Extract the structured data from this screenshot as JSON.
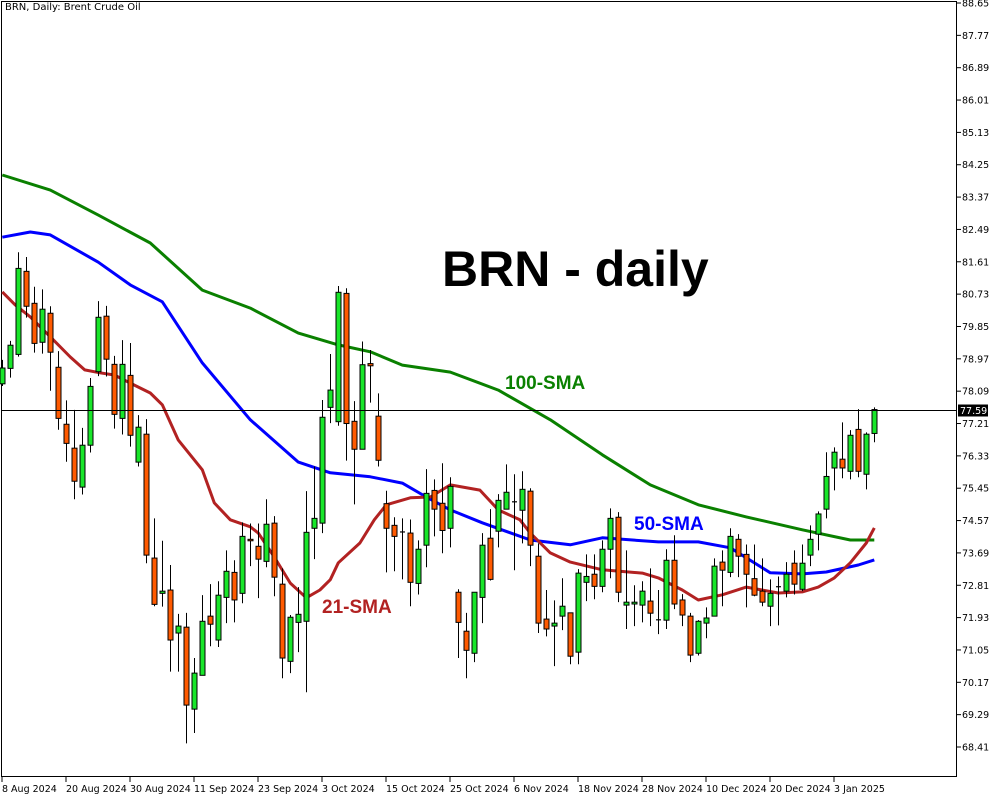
{
  "header": {
    "title": "BRN, Daily:  Brent Crude Oil"
  },
  "annotations": {
    "big_title": "BRN - daily",
    "sma100": "100-SMA",
    "sma50": "50-SMA",
    "sma21": "21-SMA"
  },
  "colors": {
    "bull": "#19e62a",
    "bear": "#ff5a00",
    "outline": "#000000",
    "sma100": "#0a8000",
    "sma50": "#0000ff",
    "sma21": "#b22222",
    "price_line": "#000000"
  },
  "chart_data": {
    "type": "candlestick",
    "title": "BRN, Daily:  Brent Crude Oil",
    "ylim": [
      68.41,
      88.65
    ],
    "y_axis_position": "right",
    "grid": false,
    "y_ticks": [
      "88.65",
      "87.77",
      "86.89",
      "86.01",
      "85.13",
      "84.25",
      "83.37",
      "82.49",
      "81.61",
      "80.73",
      "79.85",
      "78.97",
      "78.09",
      "77.21",
      "76.33",
      "75.45",
      "74.57",
      "73.69",
      "72.81",
      "71.93",
      "71.05",
      "70.17",
      "69.29",
      "68.41"
    ],
    "x_ticks": [
      {
        "label": "8 Aug 2024",
        "index": 0
      },
      {
        "label": "20 Aug 2024",
        "index": 8
      },
      {
        "label": "30 Aug 2024",
        "index": 16
      },
      {
        "label": "11 Sep 2024",
        "index": 24
      },
      {
        "label": "23 Sep 2024",
        "index": 32
      },
      {
        "label": "3 Oct 2024",
        "index": 40
      },
      {
        "label": "15 Oct 2024",
        "index": 48
      },
      {
        "label": "25 Oct 2024",
        "index": 56
      },
      {
        "label": "6 Nov 2024",
        "index": 64
      },
      {
        "label": "18 Nov 2024",
        "index": 72
      },
      {
        "label": "28 Nov 2024",
        "index": 80
      },
      {
        "label": "10 Dec 2024",
        "index": 88
      },
      {
        "label": "20 Dec 2024",
        "index": 96
      },
      {
        "label": "3 Jan 2025",
        "index": 104
      }
    ],
    "last_price": "77.59",
    "candles_ohlc": [
      [
        78.29,
        78.94,
        78.23,
        78.72
      ],
      [
        78.71,
        79.46,
        78.46,
        79.34
      ],
      [
        79.09,
        81.87,
        79.03,
        81.43
      ],
      [
        81.35,
        81.74,
        80.09,
        80.4
      ],
      [
        80.48,
        80.93,
        79.14,
        79.39
      ],
      [
        79.42,
        80.86,
        79.11,
        80.32
      ],
      [
        80.21,
        80.4,
        78.1,
        79.15
      ],
      [
        78.74,
        79.18,
        77.04,
        77.35
      ],
      [
        77.19,
        77.84,
        76.17,
        76.67
      ],
      [
        76.54,
        77.58,
        75.15,
        75.64
      ],
      [
        75.48,
        77.09,
        75.28,
        76.62
      ],
      [
        76.62,
        78.45,
        76.42,
        78.22
      ],
      [
        78.62,
        80.54,
        78.5,
        80.1
      ],
      [
        80.13,
        80.41,
        78.49,
        78.96
      ],
      [
        78.82,
        79.05,
        77.07,
        77.46
      ],
      [
        77.35,
        79.48,
        76.91,
        78.82
      ],
      [
        78.52,
        79.4,
        76.58,
        76.89
      ],
      [
        76.16,
        77.44,
        76.04,
        77.11
      ],
      [
        76.92,
        77.33,
        73.41,
        73.63
      ],
      [
        73.55,
        74.63,
        72.24,
        72.29
      ],
      [
        72.59,
        74.02,
        72.23,
        72.65
      ],
      [
        72.68,
        73.36,
        70.46,
        71.32
      ],
      [
        71.51,
        72.03,
        70.46,
        71.7
      ],
      [
        71.67,
        72.06,
        68.51,
        69.55
      ],
      [
        69.44,
        70.83,
        68.79,
        70.42
      ],
      [
        70.36,
        72.54,
        70.36,
        71.83
      ],
      [
        71.97,
        72.84,
        71.15,
        71.75
      ],
      [
        71.32,
        72.92,
        71.13,
        72.54
      ],
      [
        72.48,
        73.76,
        71.78,
        73.19
      ],
      [
        73.16,
        73.49,
        71.8,
        72.41
      ],
      [
        72.59,
        74.52,
        72.32,
        74.14
      ],
      [
        74.06,
        74.49,
        73.33,
        74.02
      ],
      [
        73.87,
        74.49,
        72.46,
        73.52
      ],
      [
        73.46,
        75.15,
        73.3,
        74.47
      ],
      [
        74.5,
        74.69,
        72.51,
        73.03
      ],
      [
        72.84,
        73.27,
        70.28,
        70.83
      ],
      [
        70.74,
        72.0,
        70.42,
        71.94
      ],
      [
        71.8,
        72.76,
        70.99,
        72.02
      ],
      [
        71.83,
        75.37,
        69.9,
        74.25
      ],
      [
        74.36,
        76.04,
        73.52,
        74.63
      ],
      [
        74.5,
        77.85,
        74.23,
        77.38
      ],
      [
        77.65,
        79.1,
        77.22,
        78.12
      ],
      [
        77.26,
        80.95,
        77.15,
        80.78
      ],
      [
        80.75,
        80.89,
        76.2,
        77.21
      ],
      [
        77.27,
        77.82,
        75.01,
        76.51
      ],
      [
        76.51,
        79.44,
        76.51,
        78.81
      ],
      [
        78.84,
        79.21,
        77.78,
        78.78
      ],
      [
        77.41,
        78.03,
        76.04,
        76.21
      ],
      [
        75.03,
        75.38,
        73.16,
        74.36
      ],
      [
        74.44,
        74.66,
        73.19,
        74.14
      ],
      [
        74.26,
        74.63,
        72.97,
        74.24
      ],
      [
        74.23,
        74.6,
        72.24,
        72.89
      ],
      [
        72.86,
        74.03,
        72.56,
        73.79
      ],
      [
        73.9,
        75.97,
        73.3,
        75.31
      ],
      [
        75.39,
        75.69,
        74.14,
        74.88
      ],
      [
        75.04,
        76.13,
        73.68,
        74.3
      ],
      [
        74.36,
        75.75,
        73.84,
        75.5
      ],
      [
        72.62,
        72.7,
        70.83,
        71.8
      ],
      [
        71.56,
        72.06,
        70.28,
        71.04
      ],
      [
        70.96,
        72.62,
        70.72,
        72.62
      ],
      [
        72.48,
        74.23,
        71.78,
        73.9
      ],
      [
        74.09,
        74.88,
        72.94,
        72.97
      ],
      [
        74.28,
        75.29,
        73.84,
        75.12
      ],
      [
        74.88,
        76.1,
        74.88,
        75.34
      ],
      [
        75.08,
        75.83,
        73.22,
        75.06
      ],
      [
        74.85,
        75.91,
        73.95,
        75.42
      ],
      [
        75.37,
        75.45,
        73.33,
        73.9
      ],
      [
        73.6,
        73.95,
        71.51,
        71.78
      ],
      [
        71.89,
        72.68,
        71.42,
        71.62
      ],
      [
        71.7,
        72.4,
        70.61,
        71.78
      ],
      [
        71.97,
        73.0,
        71.59,
        72.24
      ],
      [
        72.06,
        72.06,
        70.66,
        70.88
      ],
      [
        70.99,
        73.25,
        70.66,
        73.14
      ],
      [
        72.89,
        73.65,
        72.38,
        73.05
      ],
      [
        73.11,
        73.65,
        72.43,
        72.78
      ],
      [
        72.78,
        74.03,
        72.62,
        73.79
      ],
      [
        73.79,
        74.9,
        73.0,
        74.63
      ],
      [
        74.66,
        74.8,
        72.35,
        72.62
      ],
      [
        72.27,
        73.76,
        71.62,
        72.35
      ],
      [
        72.3,
        72.81,
        71.7,
        72.35
      ],
      [
        72.27,
        72.92,
        71.8,
        72.65
      ],
      [
        72.38,
        73.27,
        71.7,
        72.05
      ],
      [
        71.87,
        72.68,
        71.48,
        71.85
      ],
      [
        71.86,
        73.79,
        71.62,
        73.49
      ],
      [
        73.49,
        74.17,
        72.16,
        72.3
      ],
      [
        72.41,
        72.57,
        71.7,
        72.0
      ],
      [
        71.97,
        72.06,
        70.72,
        70.91
      ],
      [
        70.96,
        71.86,
        70.9,
        71.83
      ],
      [
        71.78,
        72.21,
        71.37,
        71.92
      ],
      [
        71.97,
        73.54,
        71.97,
        73.33
      ],
      [
        73.44,
        73.76,
        72.24,
        73.22
      ],
      [
        73.16,
        74.36,
        73.03,
        74.14
      ],
      [
        74.06,
        74.2,
        73.03,
        73.6
      ],
      [
        73.65,
        73.92,
        72.21,
        73.11
      ],
      [
        72.99,
        73.92,
        72.51,
        72.54
      ],
      [
        72.65,
        73.54,
        72.24,
        72.35
      ],
      [
        72.24,
        72.97,
        71.7,
        72.59
      ],
      [
        72.77,
        73.05,
        71.72,
        72.75
      ],
      [
        72.65,
        73.44,
        72.48,
        73.11
      ],
      [
        73.41,
        73.76,
        72.56,
        72.84
      ],
      [
        72.7,
        73.92,
        72.65,
        73.41
      ],
      [
        73.63,
        74.44,
        73.33,
        74.06
      ],
      [
        74.2,
        74.82,
        73.76,
        74.75
      ],
      [
        74.88,
        76.43,
        74.63,
        75.77
      ],
      [
        76.0,
        76.56,
        75.39,
        76.43
      ],
      [
        76.24,
        77.24,
        75.72,
        76.0
      ],
      [
        75.91,
        77.03,
        75.69,
        76.89
      ],
      [
        77.05,
        77.6,
        75.75,
        75.91
      ],
      [
        75.83,
        76.97,
        75.42,
        76.92
      ],
      [
        76.94,
        77.65,
        76.7,
        77.59
      ]
    ],
    "series": [
      {
        "name": "100-SMA",
        "points": [
          [
            0,
            83.97
          ],
          [
            6,
            83.56
          ],
          [
            12,
            82.88
          ],
          [
            18.5,
            82.12
          ],
          [
            25,
            80.84
          ],
          [
            31,
            80.35
          ],
          [
            37,
            79.67
          ],
          [
            42,
            79.35
          ],
          [
            46,
            79.16
          ],
          [
            50,
            78.8
          ],
          [
            56,
            78.61
          ],
          [
            62,
            78.12
          ],
          [
            68.5,
            77.31
          ],
          [
            75,
            76.36
          ],
          [
            81,
            75.54
          ],
          [
            87,
            75.0
          ],
          [
            93,
            74.67
          ],
          [
            100,
            74.32
          ],
          [
            106,
            74.04
          ],
          [
            109,
            74.04
          ]
        ]
      },
      {
        "name": "50-SMA",
        "points": [
          [
            0,
            82.28
          ],
          [
            3.5,
            82.42
          ],
          [
            6,
            82.34
          ],
          [
            12,
            81.6
          ],
          [
            16,
            80.98
          ],
          [
            20,
            80.52
          ],
          [
            25,
            78.86
          ],
          [
            31,
            77.31
          ],
          [
            37,
            76.16
          ],
          [
            41,
            75.87
          ],
          [
            46,
            75.76
          ],
          [
            50,
            75.59
          ],
          [
            53,
            75.21
          ],
          [
            56,
            74.86
          ],
          [
            60,
            74.51
          ],
          [
            66,
            74.04
          ],
          [
            71,
            73.91
          ],
          [
            75,
            74.1
          ],
          [
            82,
            73.99
          ],
          [
            87,
            73.99
          ],
          [
            91,
            73.83
          ],
          [
            96,
            73.15
          ],
          [
            100,
            73.12
          ],
          [
            103,
            73.17
          ],
          [
            107,
            73.36
          ],
          [
            109,
            73.5
          ]
        ]
      },
      {
        "name": "21-SMA",
        "points": [
          [
            0,
            80.79
          ],
          [
            1.6,
            80.44
          ],
          [
            3.5,
            80.11
          ],
          [
            6,
            79.57
          ],
          [
            8.5,
            79.02
          ],
          [
            10.3,
            78.67
          ],
          [
            12.2,
            78.59
          ],
          [
            14,
            78.53
          ],
          [
            16,
            78.31
          ],
          [
            18.5,
            78.04
          ],
          [
            20,
            77.72
          ],
          [
            22,
            76.76
          ],
          [
            25,
            75.95
          ],
          [
            26.5,
            75.05
          ],
          [
            28.5,
            74.59
          ],
          [
            31,
            74.4
          ],
          [
            32,
            74.23
          ],
          [
            34,
            73.58
          ],
          [
            36,
            72.87
          ],
          [
            38,
            72.47
          ],
          [
            39.7,
            72.68
          ],
          [
            41,
            72.96
          ],
          [
            42,
            73.42
          ],
          [
            44.7,
            73.96
          ],
          [
            46.5,
            74.59
          ],
          [
            48,
            75.0
          ],
          [
            51,
            75.19
          ],
          [
            53.5,
            75.21
          ],
          [
            56,
            75.54
          ],
          [
            59.7,
            75.4
          ],
          [
            62,
            74.86
          ],
          [
            64.7,
            74.59
          ],
          [
            66,
            74.23
          ],
          [
            68.5,
            73.69
          ],
          [
            71,
            73.44
          ],
          [
            75,
            73.23
          ],
          [
            80,
            73.14
          ],
          [
            82,
            73.01
          ],
          [
            85,
            72.68
          ],
          [
            87,
            72.41
          ],
          [
            90,
            72.55
          ],
          [
            93,
            72.76
          ],
          [
            97,
            72.6
          ],
          [
            100,
            72.63
          ],
          [
            102,
            72.76
          ],
          [
            104,
            73.01
          ],
          [
            106,
            73.42
          ],
          [
            108,
            73.96
          ],
          [
            109,
            74.37
          ]
        ]
      }
    ]
  }
}
